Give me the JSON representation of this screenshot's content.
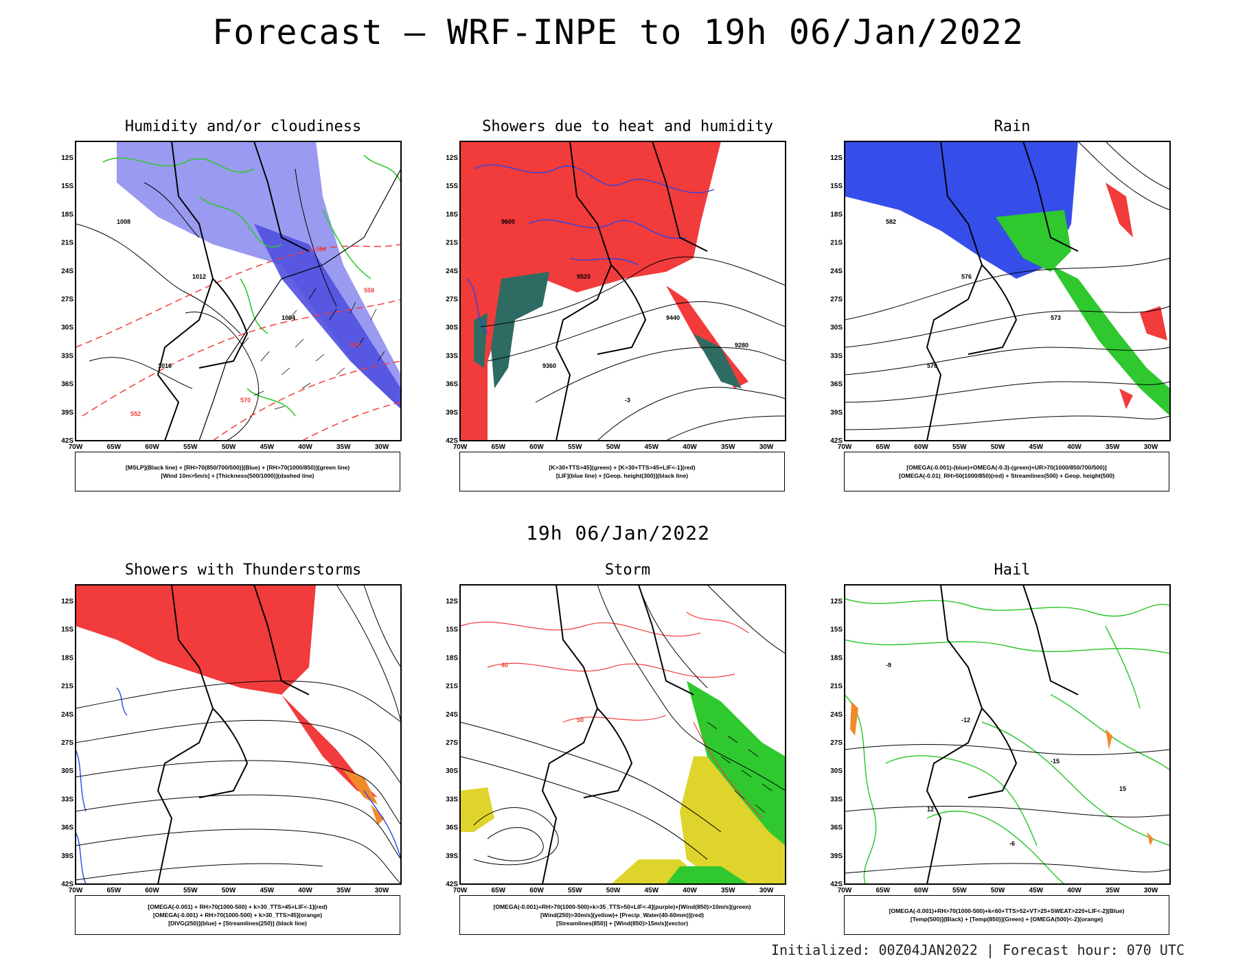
{
  "title": "Forecast — WRF-INPE to 19h 06/Jan/2022",
  "subtitle": "19h 06/Jan/2022",
  "footer": "Initialized: 00Z04JAN2022 | Forecast hour: 070 UTC",
  "axes": {
    "lat_labels": [
      "12S",
      "15S",
      "18S",
      "21S",
      "24S",
      "27S",
      "30S",
      "33S",
      "36S",
      "39S",
      "42S"
    ],
    "lon_labels": [
      "70W",
      "65W",
      "60W",
      "55W",
      "50W",
      "45W",
      "40W",
      "35W",
      "30W"
    ]
  },
  "colors": {
    "red": "#f23b3b",
    "blue": "#2a45e8",
    "green": "#2fc82f",
    "dark_teal": "#2e6b62",
    "yellow": "#dfd42c",
    "orange": "#f08a2a"
  },
  "panels": [
    {
      "title": "Humidity and/or cloudiness",
      "legend": [
        "[MSLP](Black line) + [RH>70(850/700/500)](Blue) + [RH>70(1000/850)](green line)",
        "[Wind 10m>5m/s] + [Thickness(500/1000)](dashed line)"
      ],
      "contour_labels": [
        "1008",
        "1012",
        "1004",
        "1016",
        "576",
        "570",
        "564",
        "558",
        "552"
      ]
    },
    {
      "title": "Showers due to heat and humidity",
      "legend": [
        "[K>30+TTS>45](green) + [K>30+TTS>45+LIF<-1](red)",
        "[LIF](blue line) + [Geop. height(300)](black line)"
      ],
      "contour_labels": [
        "9600",
        "9520",
        "9440",
        "9360",
        "9280",
        "-3"
      ]
    },
    {
      "title": "Rain",
      "legend": [
        "[OMEGA(-0.001)-(blue)+OMEGA(-0.3)-(green)+UR>70(1000/850/700/500)]",
        "[OMEGA(-0.01)_RH>50(1000/850)(red) + Streamlines(500) + Geop. height(500)"
      ],
      "contour_labels": [
        "582",
        "576",
        "573",
        "570"
      ]
    },
    {
      "title": "Showers with Thunderstorms",
      "legend": [
        "[OMEGA(-0.001) + RH>70(1000-500) + k>30_TTS>45+LIF<-1](red)",
        "[OMEGA(-0.001) + RH>70(1000-500) + k>30_TTS>45](orange)",
        "[DIVG(250)](blue) + [Streamlines(250)] (black line)"
      ],
      "contour_labels": []
    },
    {
      "title": "Storm",
      "legend": [
        "[OMEGA(-0.001)+RH>70(1000-500)+k>35_TTS>50+LIF<-4](purple)+[Wind(850)>10m/s](green)",
        "[Wind(250)>30m/s](yellow)+ [Precip_Water(40-60mm)](red)",
        "[Streamlines(850)] + [Wind(850)>15m/s](vector)"
      ],
      "contour_labels": [
        "40",
        "50"
      ]
    },
    {
      "title": "Hail",
      "legend": [
        "[OMEGA(-0.001)+RH>70(1000-500)+k<60+TTS>52+VT>25+SWEAT>220+LIF<-2](Blue)",
        "[Temp(500)](Black) + [Temp(850)](Green) + [OMEGA(500)<-2](orange)"
      ],
      "contour_labels": [
        "-9",
        "-12",
        "-15",
        "12",
        "15",
        "-6"
      ]
    }
  ]
}
